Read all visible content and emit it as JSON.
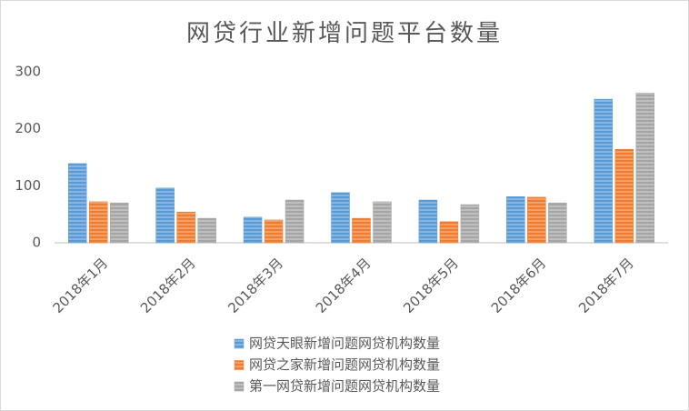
{
  "chart_data": {
    "type": "bar",
    "title": "网贷行业新增问题平台数量",
    "categories": [
      "2018年1月",
      "2018年2月",
      "2018年3月",
      "2018年4月",
      "2018年5月",
      "2018年6月",
      "2018年7月"
    ],
    "series": [
      {
        "name": "网贷天眼新增问题网贷机构数量",
        "color": "#5b9bd5",
        "values": [
          139,
          96,
          45,
          88,
          75,
          81,
          252
        ]
      },
      {
        "name": "网贷之家新增问题网贷机构数量",
        "color": "#ed7d31",
        "values": [
          72,
          54,
          40,
          43,
          37,
          80,
          164
        ]
      },
      {
        "name": "第一网贷新增问题网贷机构数量",
        "color": "#a5a5a5",
        "values": [
          70,
          43,
          75,
          72,
          67,
          70,
          263
        ]
      }
    ],
    "ylim": [
      0,
      300
    ],
    "yticks": [
      0,
      100,
      200,
      300
    ],
    "grid": false,
    "legend": "bottom"
  }
}
